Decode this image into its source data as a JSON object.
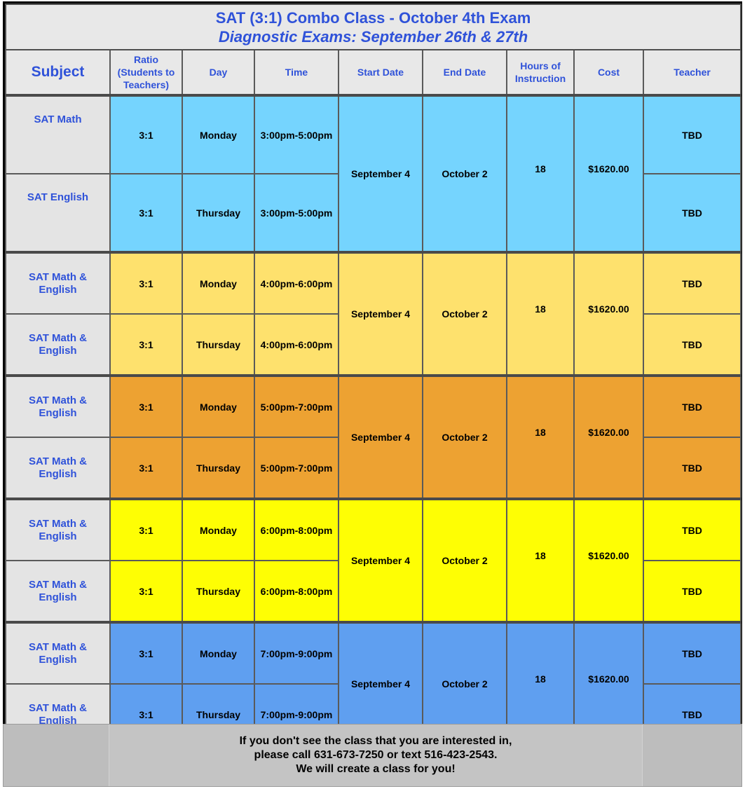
{
  "title": {
    "line1": "SAT (3:1) Combo Class - October 4th Exam",
    "line2": "Diagnostic Exams: September 26th & 27th"
  },
  "headers": {
    "subject": "Subject",
    "ratio": [
      "Ratio",
      "(Students to",
      "Teachers)"
    ],
    "day": "Day",
    "time": "Time",
    "start_date": "Start Date",
    "end_date": "End Date",
    "hours": [
      "Hours of",
      "Instruction"
    ],
    "cost": "Cost",
    "teacher": "Teacher"
  },
  "colors": {
    "group1": "#75d4fe",
    "group2": "#fee16d",
    "group3": "#eda232",
    "group4": "#fefe04",
    "group5": "#5f9ff0",
    "title_text": "#2f52d9"
  },
  "groups": [
    {
      "start_date": "September 4",
      "end_date": "October 2",
      "hours": "18",
      "cost": "$1620.00",
      "rows": [
        {
          "subject": [
            "SAT Math"
          ],
          "ratio": "3:1",
          "day": "Monday",
          "time": "3:00pm-5:00pm",
          "teacher": "TBD"
        },
        {
          "subject": [
            "SAT English"
          ],
          "ratio": "3:1",
          "day": "Thursday",
          "time": "3:00pm-5:00pm",
          "teacher": "TBD"
        }
      ]
    },
    {
      "start_date": "September 4",
      "end_date": "October 2",
      "hours": "18",
      "cost": "$1620.00",
      "rows": [
        {
          "subject": [
            "SAT Math &",
            "English"
          ],
          "ratio": "3:1",
          "day": "Monday",
          "time": "4:00pm-6:00pm",
          "teacher": "TBD"
        },
        {
          "subject": [
            "SAT Math &",
            "English"
          ],
          "ratio": "3:1",
          "day": "Thursday",
          "time": "4:00pm-6:00pm",
          "teacher": "TBD"
        }
      ]
    },
    {
      "start_date": "September 4",
      "end_date": "October 2",
      "hours": "18",
      "cost": "$1620.00",
      "rows": [
        {
          "subject": [
            "SAT Math &",
            "English"
          ],
          "ratio": "3:1",
          "day": "Monday",
          "time": "5:00pm-7:00pm",
          "teacher": "TBD"
        },
        {
          "subject": [
            "SAT Math &",
            "English"
          ],
          "ratio": "3:1",
          "day": "Thursday",
          "time": "5:00pm-7:00pm",
          "teacher": "TBD"
        }
      ]
    },
    {
      "start_date": "September 4",
      "end_date": "October 2",
      "hours": "18",
      "cost": "$1620.00",
      "rows": [
        {
          "subject": [
            "SAT Math &",
            "English"
          ],
          "ratio": "3:1",
          "day": "Monday",
          "time": "6:00pm-8:00pm",
          "teacher": "TBD"
        },
        {
          "subject": [
            "SAT Math &",
            "English"
          ],
          "ratio": "3:1",
          "day": "Thursday",
          "time": "6:00pm-8:00pm",
          "teacher": "TBD"
        }
      ]
    },
    {
      "start_date": "September 4",
      "end_date": "October 2",
      "hours": "18",
      "cost": "$1620.00",
      "rows": [
        {
          "subject": [
            "SAT Math &",
            "English"
          ],
          "ratio": "3:1",
          "day": "Monday",
          "time": "7:00pm-9:00pm",
          "teacher": "TBD"
        },
        {
          "subject": [
            "SAT Math &",
            "English"
          ],
          "ratio": "3:1",
          "day": "Thursday",
          "time": "7:00pm-9:00pm",
          "teacher": "TBD"
        }
      ]
    }
  ],
  "footer": {
    "line1": "If you don't see the class that you are interested in,",
    "line2": "please call 631-673-7250 or text 516-423-2543.",
    "line3": "We will create a class for you!"
  }
}
